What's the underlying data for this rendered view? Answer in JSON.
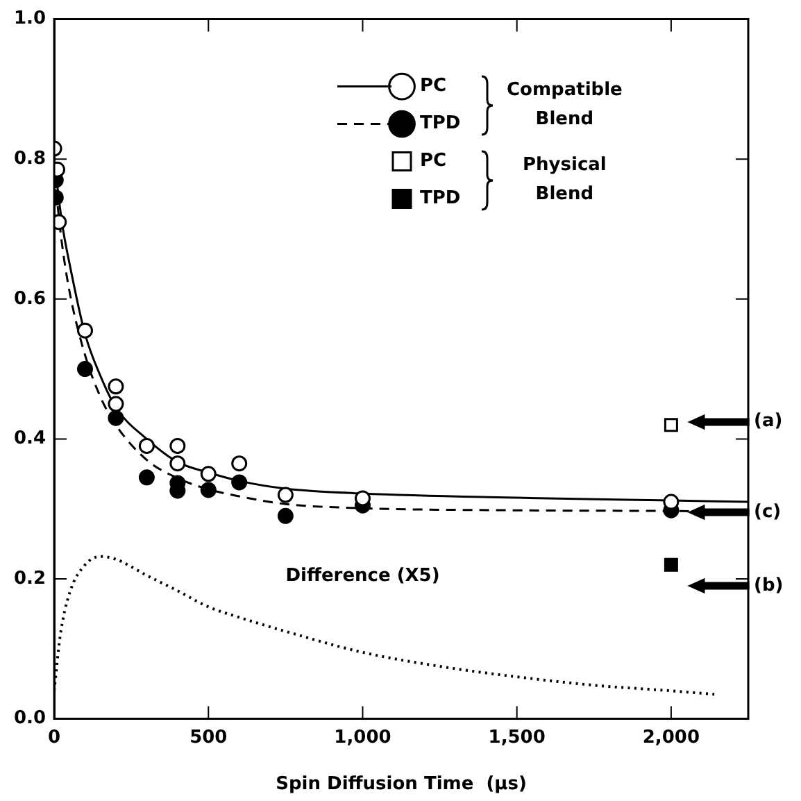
{
  "chart_data": {
    "type": "scatter",
    "xlabel": "Spin Diffusion Time  (µs)",
    "xlim": [
      0,
      2250
    ],
    "ylim": [
      0,
      1
    ],
    "xticks": [
      0,
      {
        "value": 500,
        "label": "500"
      },
      {
        "value": 1000,
        "label": "1,000"
      },
      {
        "value": 1500,
        "label": "1,500"
      },
      {
        "value": 2000,
        "label": "2,000"
      }
    ],
    "yticks": [
      {
        "value": 0,
        "label": "0.0"
      },
      0.2,
      0.4,
      0.6,
      0.8,
      {
        "value": 1,
        "label": "1.0"
      }
    ],
    "legend": "top right",
    "series": [
      {
        "name": "PC",
        "type": "scatter",
        "marker": "circle",
        "color": "#ffffff",
        "x": [
          0,
          10,
          15,
          100,
          200,
          200,
          300,
          400,
          400,
          500,
          600,
          750,
          1000,
          2000
        ],
        "values": [
          0.815,
          0.785,
          0.71,
          0.555,
          0.475,
          0.45,
          0.39,
          0.39,
          0.365,
          0.35,
          0.365,
          0.32,
          0.315,
          0.31
        ]
      },
      {
        "type": "line",
        "marker": "none",
        "line_style": "solid",
        "color": "#000000",
        "x": [
          0,
          25,
          50,
          100,
          150,
          200,
          300,
          400,
          500,
          600,
          750,
          1000,
          1500,
          2000,
          2250
        ],
        "values": [
          0.8,
          0.71,
          0.65,
          0.55,
          0.49,
          0.445,
          0.4,
          0.367,
          0.352,
          0.34,
          0.329,
          0.322,
          0.316,
          0.312,
          0.31
        ]
      },
      {
        "name": "TPD",
        "type": "scatter",
        "marker": "circle",
        "color": "#000000",
        "x": [
          5,
          5,
          100,
          200,
          300,
          400,
          400,
          500,
          600,
          750,
          1000,
          2000
        ],
        "values": [
          0.77,
          0.745,
          0.5,
          0.43,
          0.345,
          0.337,
          0.326,
          0.327,
          0.338,
          0.29,
          0.305,
          0.298
        ]
      },
      {
        "type": "line",
        "marker": "none",
        "line_style": "dashed",
        "color": "#000000",
        "x": [
          0,
          25,
          50,
          100,
          150,
          200,
          300,
          400,
          500,
          600,
          750,
          1000,
          1500,
          2000,
          2250
        ],
        "values": [
          0.78,
          0.68,
          0.61,
          0.52,
          0.46,
          0.42,
          0.37,
          0.344,
          0.328,
          0.318,
          0.307,
          0.301,
          0.298,
          0.297,
          0.296
        ]
      },
      {
        "name": "PC",
        "type": "scatter",
        "marker": "square",
        "color": "#ffffff",
        "x": [
          2000
        ],
        "values": [
          0.42
        ]
      },
      {
        "name": "TPD",
        "type": "scatter",
        "marker": "square",
        "color": "#000000",
        "x": [
          2000
        ],
        "values": [
          0.22
        ]
      },
      {
        "name": "Difference (X5)",
        "type": "line",
        "marker": "none",
        "line_style": "dotted",
        "color": "#000000",
        "x": [
          0,
          20,
          50,
          100,
          150,
          200,
          300,
          400,
          500,
          600,
          750,
          1000,
          1250,
          1500,
          1750,
          2000,
          2140
        ],
        "values": [
          0.04,
          0.12,
          0.18,
          0.22,
          0.232,
          0.228,
          0.205,
          0.183,
          0.16,
          0.145,
          0.125,
          0.095,
          0.075,
          0.06,
          0.048,
          0.04,
          0.035
        ]
      }
    ],
    "annotations": [
      "Compatible Blend",
      "Physical Blend",
      "(a)",
      "(c)",
      "(b)"
    ]
  }
}
